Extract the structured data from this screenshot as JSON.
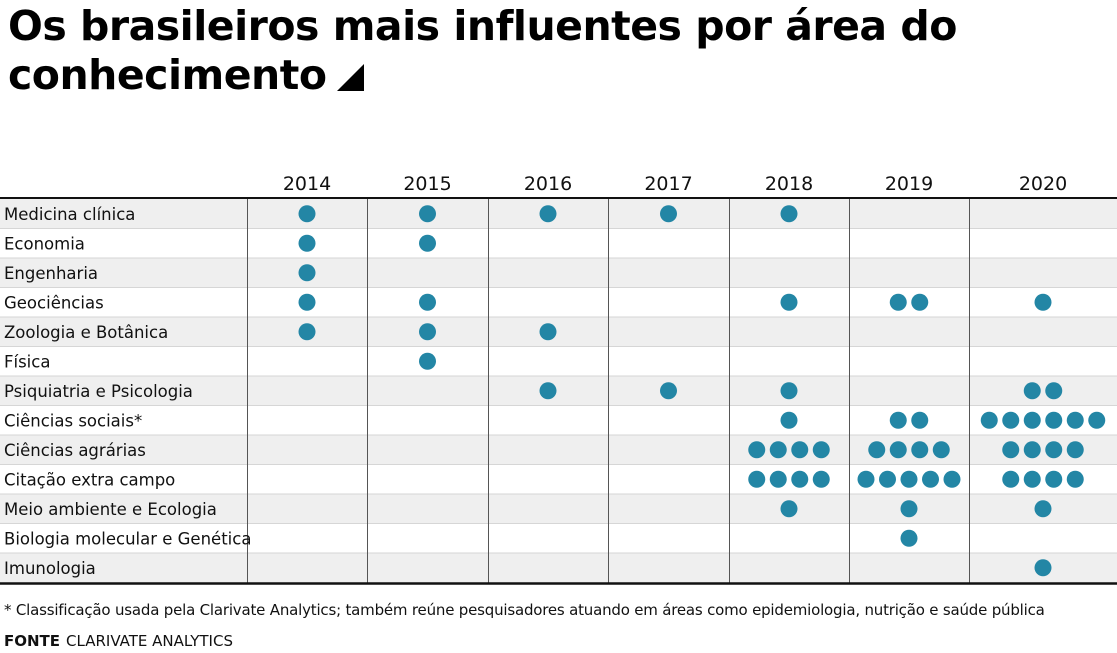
{
  "title": "Os brasileiros mais influentes por área do conhecimento",
  "title_icon": "triangle-corner-icon",
  "colors": {
    "dot": "#2386a5",
    "row_alt": "#efefef",
    "grid": "#555555"
  },
  "chart_data": {
    "type": "table",
    "title": "Os brasileiros mais influentes por área do conhecimento",
    "columns": [
      "2014",
      "2015",
      "2016",
      "2017",
      "2018",
      "2019",
      "2020"
    ],
    "rows": [
      {
        "label": "Medicina clínica",
        "values": [
          1,
          1,
          1,
          1,
          1,
          0,
          0
        ]
      },
      {
        "label": "Economia",
        "values": [
          1,
          1,
          0,
          0,
          0,
          0,
          0
        ]
      },
      {
        "label": "Engenharia",
        "values": [
          1,
          0,
          0,
          0,
          0,
          0,
          0
        ]
      },
      {
        "label": "Geociências",
        "values": [
          1,
          1,
          0,
          0,
          1,
          2,
          1
        ]
      },
      {
        "label": "Zoologia e Botânica",
        "values": [
          1,
          1,
          1,
          0,
          0,
          0,
          0
        ]
      },
      {
        "label": "Física",
        "values": [
          0,
          1,
          0,
          0,
          0,
          0,
          0
        ]
      },
      {
        "label": "Psiquiatria e Psicologia",
        "values": [
          0,
          0,
          1,
          1,
          1,
          0,
          2
        ]
      },
      {
        "label": "Ciências sociais*",
        "values": [
          0,
          0,
          0,
          0,
          1,
          2,
          6
        ]
      },
      {
        "label": "Ciências agrárias",
        "values": [
          0,
          0,
          0,
          0,
          4,
          4,
          4
        ]
      },
      {
        "label": "Citação extra campo",
        "values": [
          0,
          0,
          0,
          0,
          4,
          5,
          4
        ]
      },
      {
        "label": "Meio ambiente e Ecologia",
        "values": [
          0,
          0,
          0,
          0,
          1,
          1,
          1
        ]
      },
      {
        "label": "Biologia molecular e Genética",
        "values": [
          0,
          0,
          0,
          0,
          0,
          1,
          0
        ]
      },
      {
        "label": "Imunologia",
        "values": [
          0,
          0,
          0,
          0,
          0,
          0,
          1
        ]
      }
    ],
    "unit": "número de pesquisadores (cada círculo = 1)"
  },
  "footnote": "* Classificação usada pela Clarivate Analytics; também reúne pesquisadores atuando em áreas como epidemiologia, nutrição e saúde pública",
  "source_label": "FONTE",
  "source_value": "CLARIVATE ANALYTICS"
}
